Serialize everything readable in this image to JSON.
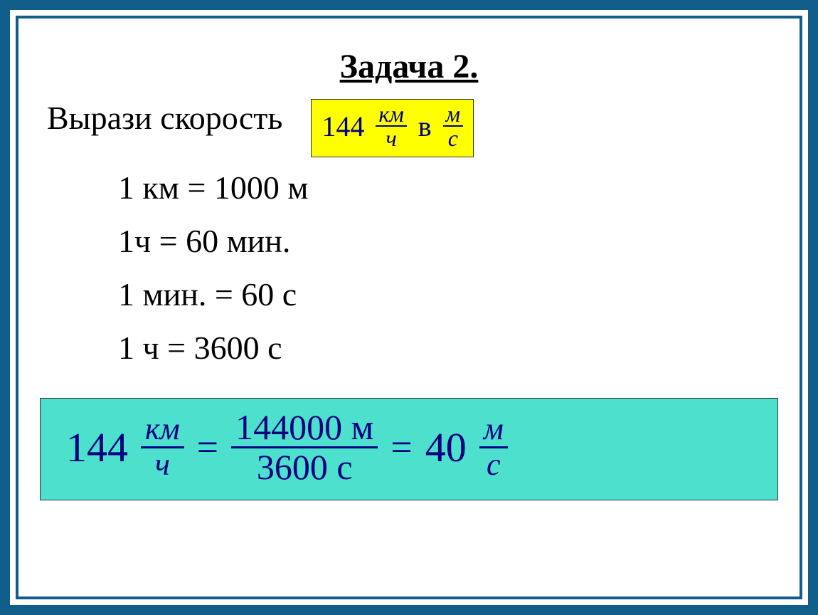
{
  "colors": {
    "frame": "#125e8a",
    "background": "#ffffff",
    "text_black": "#000000",
    "text_navy": "#000080",
    "highlight_yellow": "#ffff00",
    "highlight_teal": "#4de0cc",
    "box_border": "#333333"
  },
  "typography": {
    "font_family": "Times New Roman",
    "title_size": 48,
    "body_size": 46,
    "formula_size": 58,
    "frac_label_size": 44
  },
  "title": "Задача 2.",
  "instruction": "Вырази  скорость",
  "yellow_box": {
    "value": "144",
    "from_unit_top": "км",
    "from_unit_bot": "ч",
    "connector": "в",
    "to_unit_top": "м",
    "to_unit_bot": "с"
  },
  "conversions": [
    "1 км = 1000 м",
    "1ч  =  60 мин.",
    "1 мин. =  60 с",
    "1 ч  =  3600 с"
  ],
  "solution": {
    "lhs_value": "144",
    "lhs_top": "км",
    "lhs_bot": "ч",
    "mid_top": "144000 м",
    "mid_bot": "3600 с",
    "rhs_value": "40",
    "rhs_top": "м",
    "rhs_bot": "с",
    "eq": "="
  }
}
